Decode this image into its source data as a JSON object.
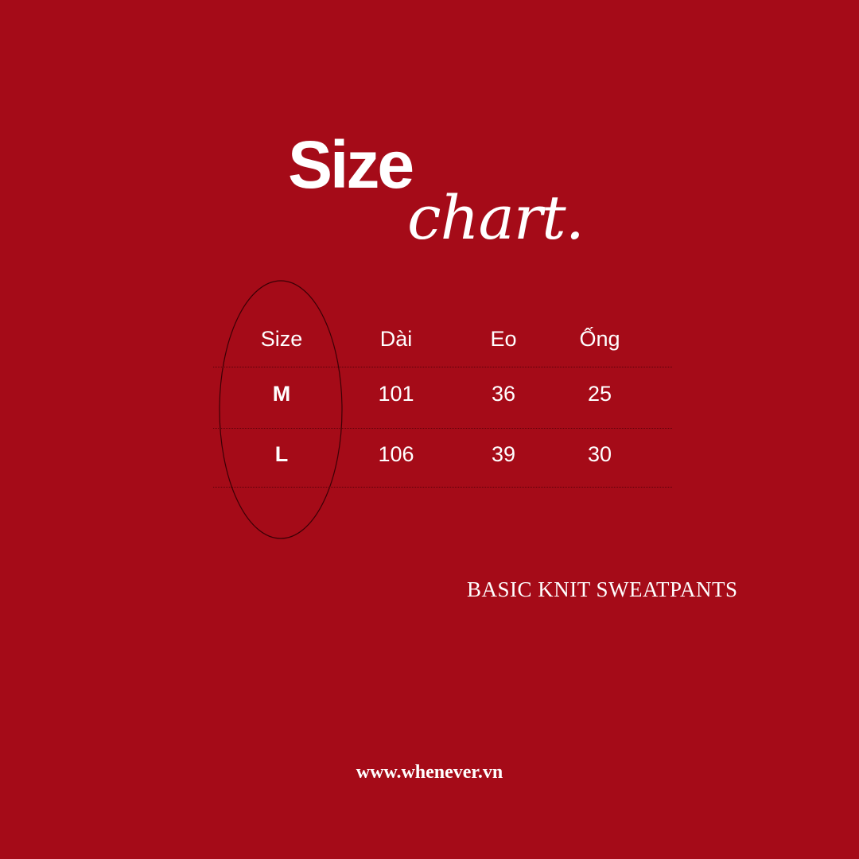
{
  "title": {
    "main": "Size",
    "script": "chart."
  },
  "table": {
    "headers": [
      "Size",
      "Dài",
      "Eo",
      "Ống"
    ],
    "rows": [
      [
        "M",
        "101",
        "36",
        "25"
      ],
      [
        "L",
        "106",
        "39",
        "30"
      ]
    ]
  },
  "product_name": "BASIC KNIT SWEATPANTS",
  "website": "www.whenever.vn",
  "colors": {
    "background": "#a50b18",
    "text": "#ffffff",
    "lines": "#5a0008"
  }
}
